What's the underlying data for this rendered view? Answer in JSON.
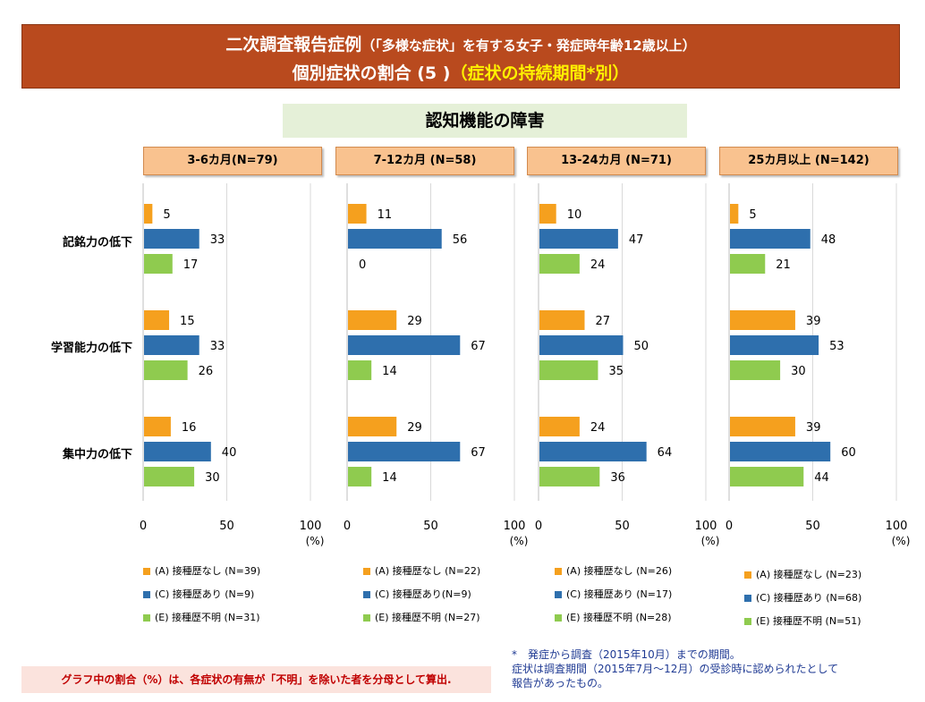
{
  "header": {
    "title_main": "二次調査報告症例",
    "title_paren": "（「多様な症状」を有する女子・発症時年齢12歳以上）",
    "title_line2_main": "個別症状の割合 (5 )",
    "title_line2_accent": "（症状の持続期間*別）"
  },
  "section_title": "認知機能の障害",
  "categories": [
    "記銘力の低下",
    "学習能力の低下",
    "集中力の低下"
  ],
  "tick_labels": [
    "0",
    "50",
    "100"
  ],
  "unit_label": "(%)",
  "colors": {
    "A": "#f5a01e",
    "C": "#2e6fad",
    "E": "#8fcb4f"
  },
  "legends": [
    [
      "(A) 接種歴なし (N=39)",
      "(C) 接種歴あり (N=9)",
      "(E) 接種歴不明 (N=31)"
    ],
    [
      "(A) 接種歴なし (N=22)",
      "(C) 接種歴あり(N=9)",
      "(E) 接種歴不明 (N=27)"
    ],
    [
      "(A) 接種歴なし (N=26)",
      "(C) 接種歴あり (N=17)",
      "(E) 接種歴不明 (N=28)"
    ],
    [
      "(A) 接種歴なし (N=23)",
      "(C) 接種歴あり (N=68)",
      "(E) 接種歴不明 (N=51)"
    ]
  ],
  "notes": {
    "left": "グラフ中の割合（%）は、各症状の有無が「不明」を除いた者を分母として算出.",
    "right_1": "*　発症から調査（2015年10月）までの期間。",
    "right_2": "症状は調査期間（2015年7月～12月）の受診時に認められたとして",
    "right_3": "報告があったもの。"
  },
  "chart_data": [
    {
      "type": "bar",
      "orientation": "horizontal",
      "title": "3-6カ月(N=79)",
      "categories": [
        "記銘力の低下",
        "学習能力の低下",
        "集中力の低下"
      ],
      "xlim": [
        0,
        100
      ],
      "xticks": [
        0,
        50,
        100
      ],
      "xlabel": "(%)",
      "series": [
        {
          "key": "A",
          "values": [
            5,
            15,
            16
          ]
        },
        {
          "key": "C",
          "values": [
            33,
            33,
            40
          ]
        },
        {
          "key": "E",
          "values": [
            17,
            26,
            30
          ]
        }
      ]
    },
    {
      "type": "bar",
      "orientation": "horizontal",
      "title": "7-12カ月 (N=58)",
      "categories": [
        "記銘力の低下",
        "学習能力の低下",
        "集中力の低下"
      ],
      "xlim": [
        0,
        100
      ],
      "xticks": [
        0,
        50,
        100
      ],
      "xlabel": "(%)",
      "series": [
        {
          "key": "A",
          "values": [
            11,
            29,
            29
          ]
        },
        {
          "key": "C",
          "values": [
            56,
            67,
            67
          ]
        },
        {
          "key": "E",
          "values": [
            0,
            14,
            14
          ]
        }
      ]
    },
    {
      "type": "bar",
      "orientation": "horizontal",
      "title": "13-24カ月 (N=71)",
      "categories": [
        "記銘力の低下",
        "学習能力の低下",
        "集中力の低下"
      ],
      "xlim": [
        0,
        100
      ],
      "xticks": [
        0,
        50,
        100
      ],
      "xlabel": "(%)",
      "series": [
        {
          "key": "A",
          "values": [
            10,
            27,
            24
          ]
        },
        {
          "key": "C",
          "values": [
            47,
            50,
            64
          ]
        },
        {
          "key": "E",
          "values": [
            24,
            35,
            36
          ]
        }
      ]
    },
    {
      "type": "bar",
      "orientation": "horizontal",
      "title": "25カ月以上 (N=142)",
      "categories": [
        "記銘力の低下",
        "学習能力の低下",
        "集中力の低下"
      ],
      "xlim": [
        0,
        100
      ],
      "xticks": [
        0,
        50,
        100
      ],
      "xlabel": "(%)",
      "series": [
        {
          "key": "A",
          "values": [
            5,
            39,
            39
          ]
        },
        {
          "key": "C",
          "values": [
            48,
            53,
            60
          ]
        },
        {
          "key": "E",
          "values": [
            21,
            30,
            44
          ]
        }
      ]
    }
  ]
}
